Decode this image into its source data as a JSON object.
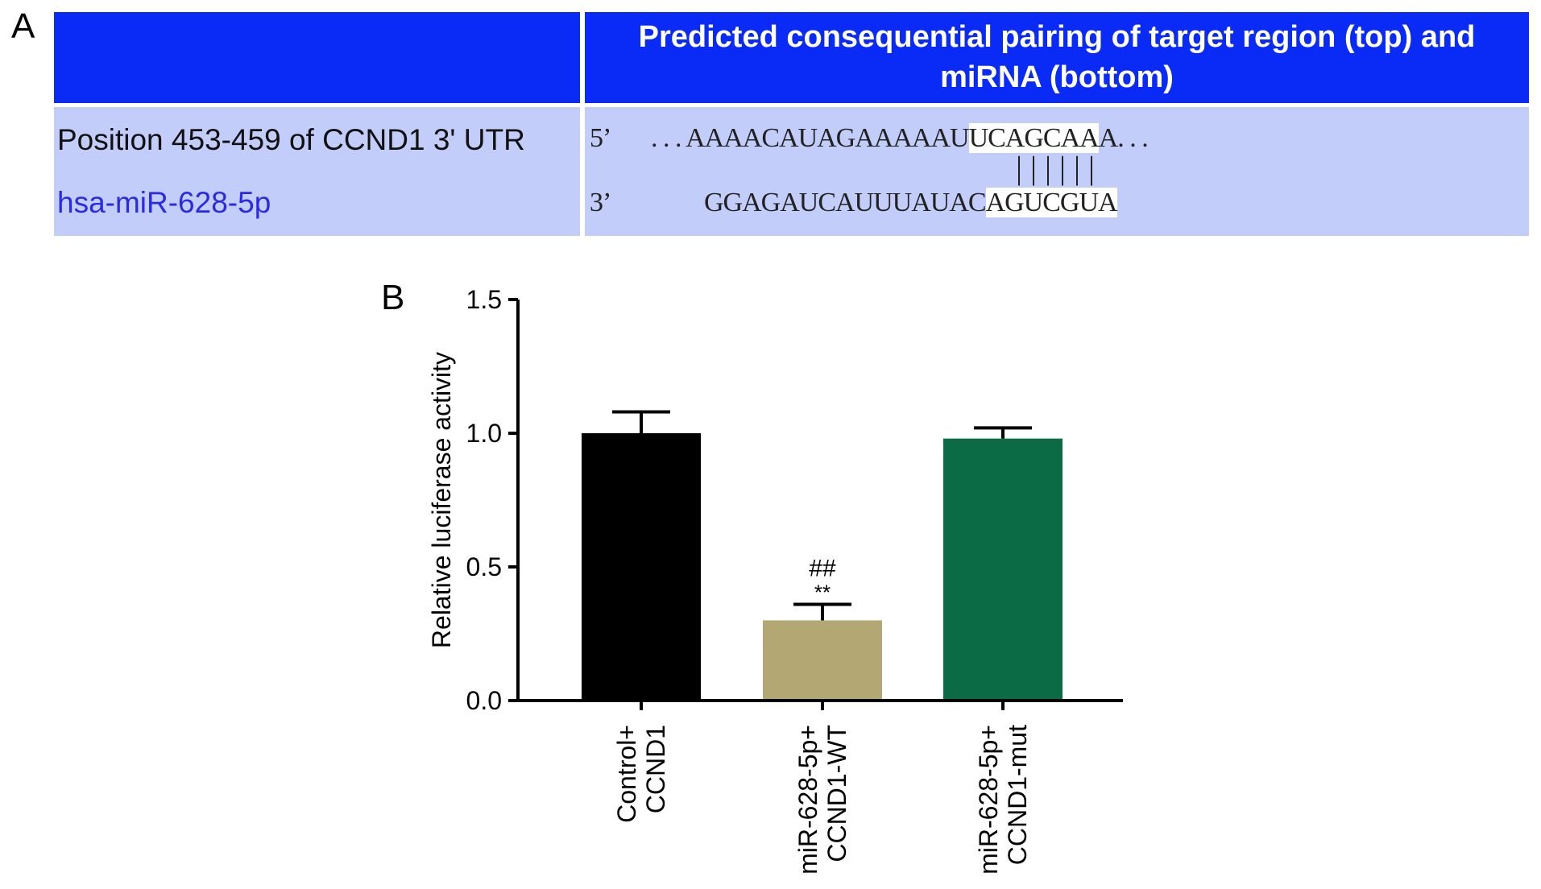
{
  "panel_a": {
    "label": "A",
    "header": "Predicted consequential pairing of target region (top) and miRNA (bottom)",
    "target_label": "Position 453-459 of CCND1 3' UTR",
    "mirna_label": "hsa-miR-628-5p",
    "target_prime": "5’",
    "mirna_prime": "3’",
    "target_seq_pre": ". . . AAAACAUAGAAAAAU",
    "target_seq_seed": "UCAGCAA",
    "target_seq_post": "A. . .",
    "mirna_seq_pre": "GGAGAUCAUUUAUAC",
    "mirna_seq_seed": "AGUCGUA",
    "pairing": "||||||"
  },
  "panel_b": {
    "label": "B"
  },
  "chart_data": {
    "type": "bar",
    "title": "",
    "xlabel": "",
    "ylabel": "Relative luciferase activity",
    "ylim": [
      0,
      1.5
    ],
    "yticks": [
      "0.0",
      "0.5",
      "1.0",
      "1.5"
    ],
    "categories": [
      [
        "Control+",
        "CCND1"
      ],
      [
        "miR-628-5p+",
        "CCND1-WT"
      ],
      [
        "miR-628-5p+",
        "CCND1-mut"
      ]
    ],
    "values": [
      1.0,
      0.3,
      0.98
    ],
    "errors": [
      0.08,
      0.06,
      0.04
    ],
    "colors": [
      "#000000",
      "#b3a874",
      "#0b6b45"
    ],
    "annotations": [
      null,
      [
        "##",
        "**"
      ],
      null
    ],
    "grid": false
  }
}
